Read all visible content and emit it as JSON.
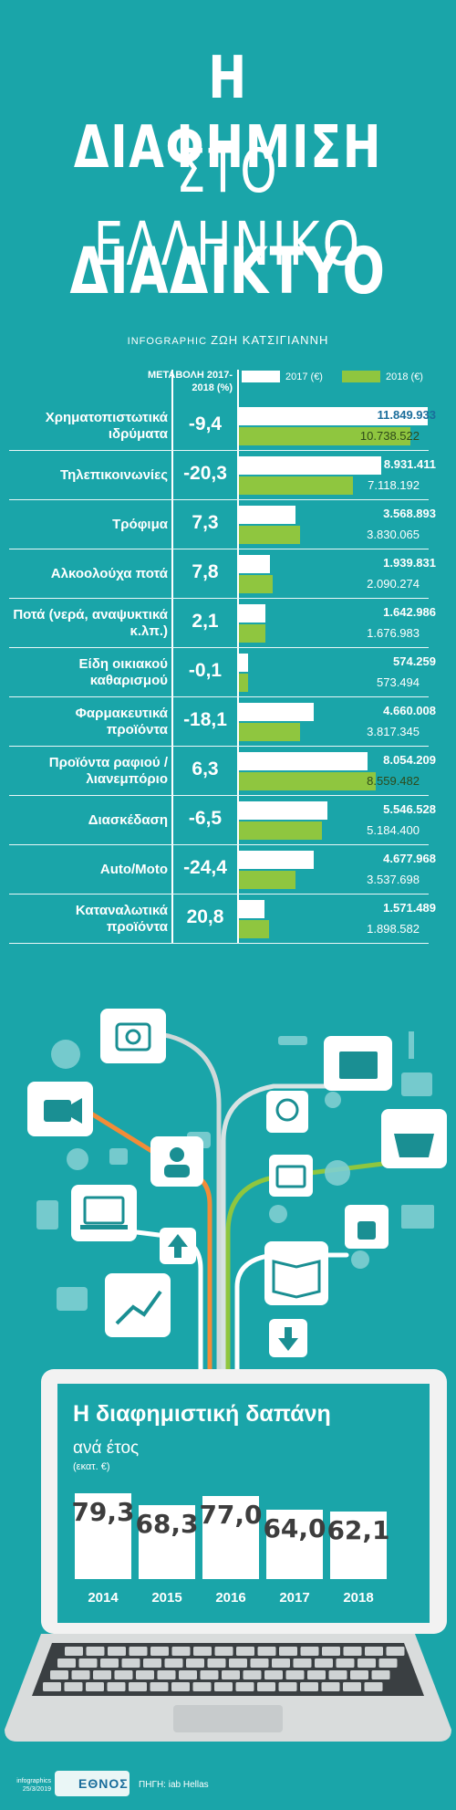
{
  "title": {
    "line1": "Η ΔΙΑΦΗΜΙΣΗ",
    "line2": "ΣΤΟ ΕΛΛΗΝΙΚΟ",
    "line3": "ΔΙΑΔΙΚΤΥΟ"
  },
  "credit": {
    "label": "INFOGRAPHIC",
    "name": "ΖΩΗ ΚΑΤΣΙΓΙΑΝΝΗ"
  },
  "colors": {
    "bg": "#1aa5a9",
    "bar2017": "#ffffff",
    "bar2018": "#8fc63f"
  },
  "chart_data": [
    {
      "type": "bar",
      "header_change": "ΜΕΤΑΒΟΛΗ 2017-2018 (%)",
      "series": [
        {
          "name": "2017 (€)",
          "values": [
            11849933,
            8931411,
            3568893,
            1939831,
            1642986,
            574259,
            4660008,
            8054209,
            5546528,
            4677968,
            1571489
          ]
        },
        {
          "name": "2018 (€)",
          "values": [
            10738522,
            7118192,
            3830065,
            2090274,
            1676983,
            573494,
            3817345,
            8559482,
            5184400,
            3537698,
            1898582
          ]
        }
      ],
      "categories": [
        {
          "label": "Χρηματοπιστωτικά ιδρύματα",
          "change": "-9,4",
          "v2017": "11.849.933",
          "v2018": "10.738.522"
        },
        {
          "label": "Τηλεπικοινωνίες",
          "change": "-20,3",
          "v2017": "8.931.411",
          "v2018": "7.118.192"
        },
        {
          "label": "Τρόφιμα",
          "change": "7,3",
          "v2017": "3.568.893",
          "v2018": "3.830.065"
        },
        {
          "label": "Αλκοολούχα ποτά",
          "change": "7,8",
          "v2017": "1.939.831",
          "v2018": "2.090.274"
        },
        {
          "label": "Ποτά (νερά, αναψυκτικά κ.λπ.)",
          "change": "2,1",
          "v2017": "1.642.986",
          "v2018": "1.676.983"
        },
        {
          "label": "Είδη οικιακού καθαρισμού",
          "change": "-0,1",
          "v2017": "574.259",
          "v2018": "573.494"
        },
        {
          "label": "Φαρμακευτικά προϊόντα",
          "change": "-18,1",
          "v2017": "4.660.008",
          "v2018": "3.817.345"
        },
        {
          "label": "Προϊόντα ραφιού /λιανεμπόριο",
          "change": "6,3",
          "v2017": "8.054.209",
          "v2018": "8.559.482"
        },
        {
          "label": "Διασκέδαση",
          "change": "-6,5",
          "v2017": "5.546.528",
          "v2018": "5.184.400"
        },
        {
          "label": "Auto/Moto",
          "change": "-24,4",
          "v2017": "4.677.968",
          "v2018": "3.537.698"
        },
        {
          "label": "Καταναλωτικά προϊόντα",
          "change": "20,8",
          "v2017": "1.571.489",
          "v2018": "1.898.582"
        }
      ]
    },
    {
      "type": "bar",
      "title": "Η διαφημιστική δαπάνη",
      "subtitle": "ανά έτος",
      "unit": "(εκατ. €)",
      "categories": [
        "2014",
        "2015",
        "2016",
        "2017",
        "2018"
      ],
      "values": [
        79.3,
        68.3,
        77.0,
        64.0,
        62.1
      ],
      "labels": [
        "79,3",
        "68,3",
        "77,0",
        "64,0",
        "62,1"
      ]
    }
  ],
  "footer": {
    "small_line1": "infographics",
    "small_line2": "25/3/2019",
    "logo": "ΕΘΝΟΣ",
    "source": "ΠΗΓΗ: iab Hellas"
  }
}
